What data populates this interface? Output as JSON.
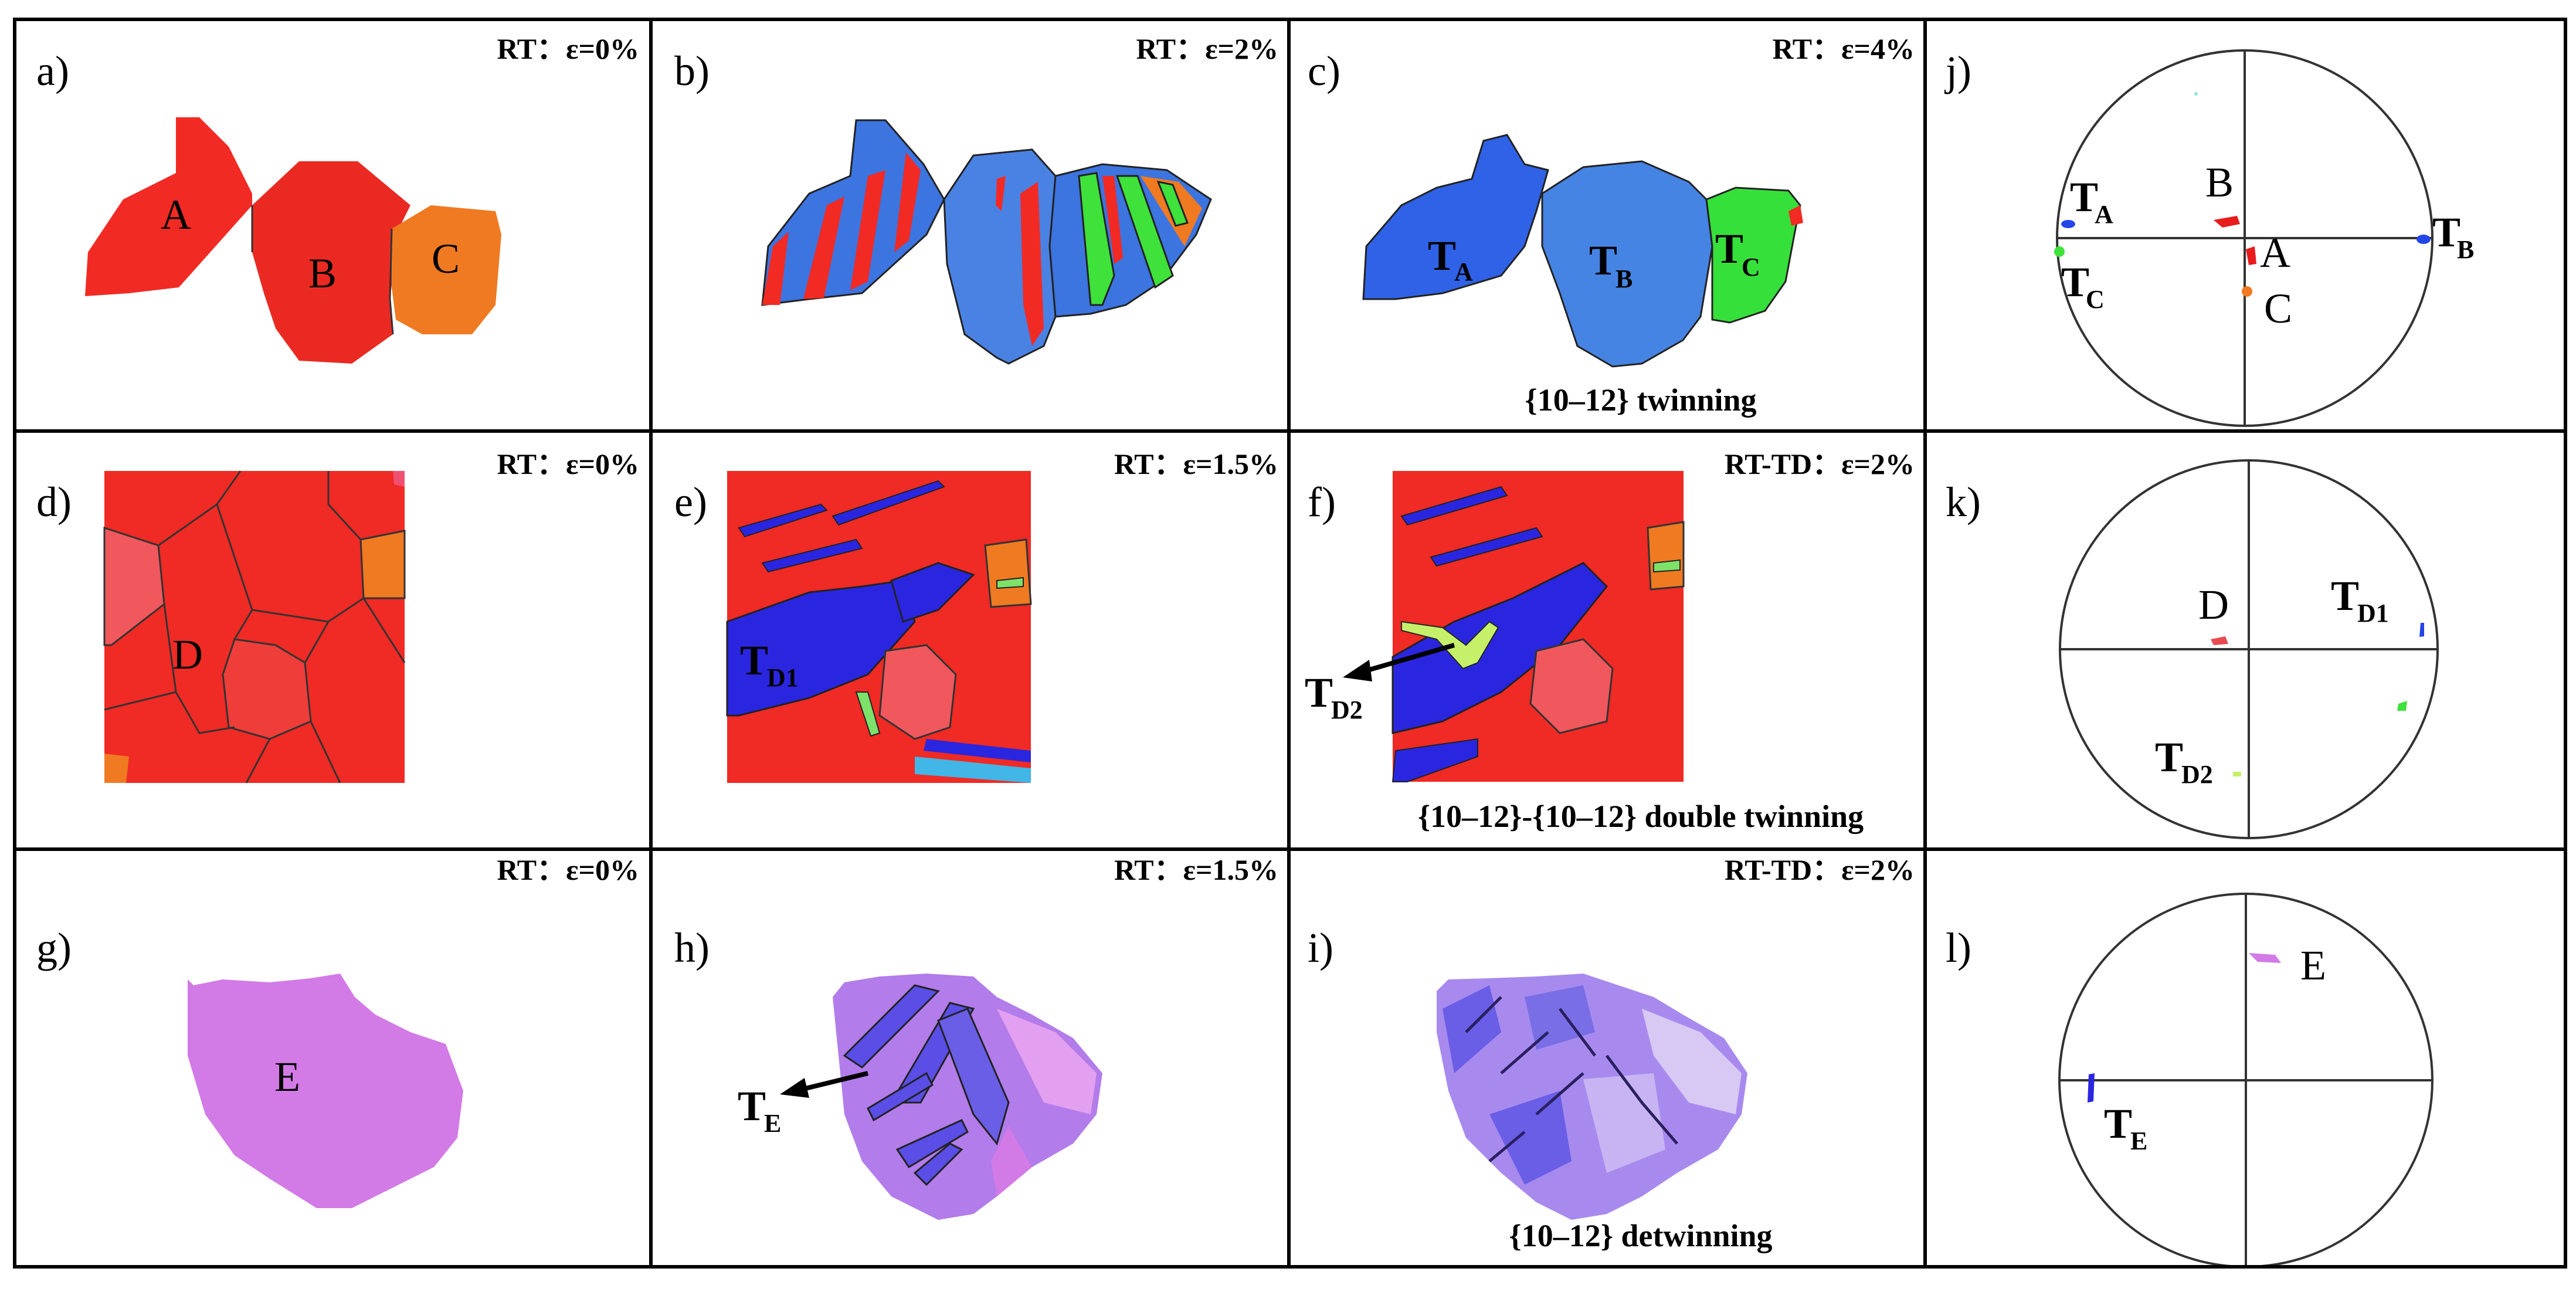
{
  "panels": {
    "a": {
      "letter": "a)",
      "condition": "RT：ε=0%",
      "grains": [
        "A",
        "B",
        "C"
      ]
    },
    "b": {
      "letter": "b)",
      "condition": "RT：ε=2%"
    },
    "c": {
      "letter": "c)",
      "condition": "RT：ε=4%",
      "twins": {
        "TA": [
          "T",
          "A"
        ],
        "TB": [
          "T",
          "B"
        ],
        "TC": [
          "T",
          "C"
        ]
      },
      "caption": "{10–12} twinning"
    },
    "j": {
      "letter": "j)",
      "poles": {
        "TA": [
          "T",
          "A"
        ],
        "TB": [
          "T",
          "B"
        ],
        "TC": [
          "T",
          "C"
        ],
        "A": "A",
        "B": "B",
        "C": "C"
      }
    },
    "d": {
      "letter": "d)",
      "condition": "RT：ε=0%",
      "grain": "D"
    },
    "e": {
      "letter": "e)",
      "condition": "RT：ε=1.5%",
      "twin": [
        "T",
        "D1"
      ]
    },
    "f": {
      "letter": "f)",
      "condition": "RT-TD：ε=2%",
      "twin": [
        "T",
        "D2"
      ],
      "caption": "{10–12}-{10–12} double twinning"
    },
    "k": {
      "letter": "k)",
      "poles": {
        "D": "D",
        "TD1": [
          "T",
          "D1"
        ],
        "TD2": [
          "T",
          "D2"
        ]
      }
    },
    "g": {
      "letter": "g)",
      "condition": "RT：ε=0%",
      "grain": "E"
    },
    "h": {
      "letter": "h)",
      "condition": "RT：ε=1.5%",
      "twin": [
        "T",
        "E"
      ]
    },
    "i": {
      "letter": "i)",
      "condition": "RT-TD：ε=2%",
      "caption": "{10–12} detwinning"
    },
    "l": {
      "letter": "l)",
      "poles": {
        "E": "E",
        "TE": [
          "T",
          "E"
        ]
      }
    }
  },
  "colors": {
    "red": "#f22a24",
    "orange": "#f07a22",
    "blue": "#3c74e0",
    "deep_blue": "#2246e8",
    "green": "#3ee23a",
    "pink": "#e8566c",
    "magenta": "#d27ae6",
    "violet": "#6a5ee6",
    "light_green": "#c6f06a",
    "cyan": "#42b6e6"
  }
}
